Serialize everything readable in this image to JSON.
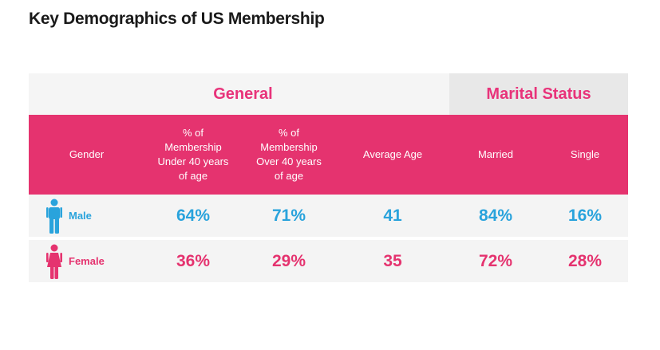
{
  "title": "Key Demographics of US Membership",
  "groups": {
    "general": "General",
    "marital": "Marital Status"
  },
  "columns": {
    "gender": "Gender",
    "under40": "% of\nMembership\nUnder 40 years\nof age",
    "over40": "% of\nMembership\nOver 40 years\nof age",
    "avg_age": "Average Age",
    "married": "Married",
    "single": "Single"
  },
  "rows": [
    {
      "label": "Male",
      "icon": "male-person-icon",
      "under40": "64%",
      "over40": "71%",
      "avg_age": "41",
      "married": "84%",
      "single": "16%"
    },
    {
      "label": "Female",
      "icon": "female-person-icon",
      "under40": "36%",
      "over40": "29%",
      "avg_age": "35",
      "married": "72%",
      "single": "28%"
    }
  ],
  "colors": {
    "accent_pink": "#e5336f",
    "accent_blue": "#29a3dc"
  }
}
